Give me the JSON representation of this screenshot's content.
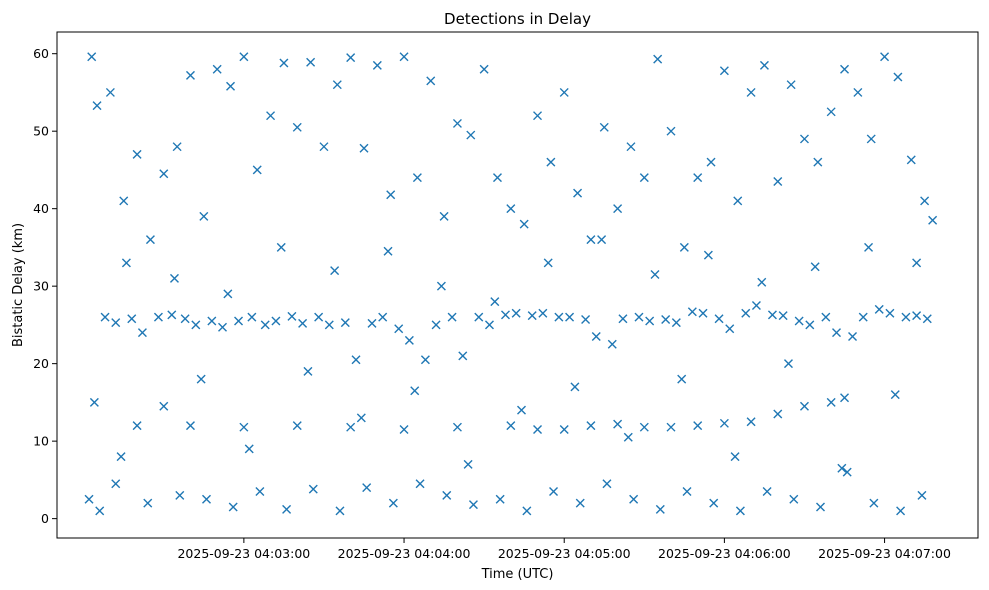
{
  "chart_data": {
    "type": "scatter",
    "title": "Detections in Delay",
    "xlabel": "Time (UTC)",
    "ylabel": "Bistatic Delay (km)",
    "x_tick_labels": [
      "2025-09-23 04:03:00",
      "2025-09-23 04:04:00",
      "2025-09-23 04:05:00",
      "2025-09-23 04:06:00",
      "2025-09-23 04:07:00"
    ],
    "y_ticks": [
      0,
      10,
      20,
      30,
      40,
      50,
      60
    ],
    "xlim": [
      "2025-09-23 04:01:50",
      "2025-09-23 04:07:35"
    ],
    "ylim": [
      -2.5,
      62.8
    ],
    "marker": "x",
    "color": "#1f77b4",
    "grid": false,
    "series": [
      {
        "x": [
          "2025-09-23 04:02:03",
          "2025-09-23 04:02:05",
          "2025-09-23 04:02:10",
          "2025-09-23 04:02:15",
          "2025-09-23 04:02:20",
          "2025-09-23 04:02:25",
          "2025-09-23 04:02:30",
          "2025-09-23 04:02:35",
          "2025-09-23 04:02:40",
          "2025-09-23 04:02:45",
          "2025-09-23 04:02:50",
          "2025-09-23 04:02:55",
          "2025-09-23 04:03:00",
          "2025-09-23 04:03:05",
          "2025-09-23 04:03:10",
          "2025-09-23 04:03:15",
          "2025-09-23 04:03:20",
          "2025-09-23 04:03:25",
          "2025-09-23 04:03:30",
          "2025-09-23 04:03:35",
          "2025-09-23 04:03:40",
          "2025-09-23 04:03:45",
          "2025-09-23 04:03:50",
          "2025-09-23 04:03:55",
          "2025-09-23 04:04:00",
          "2025-09-23 04:04:05",
          "2025-09-23 04:04:10",
          "2025-09-23 04:04:15",
          "2025-09-23 04:04:20",
          "2025-09-23 04:04:25",
          "2025-09-23 04:04:30",
          "2025-09-23 04:04:35",
          "2025-09-23 04:04:40",
          "2025-09-23 04:04:45",
          "2025-09-23 04:04:50",
          "2025-09-23 04:04:55",
          "2025-09-23 04:05:00",
          "2025-09-23 04:05:05",
          "2025-09-23 04:05:10",
          "2025-09-23 04:05:15",
          "2025-09-23 04:05:20",
          "2025-09-23 04:05:25",
          "2025-09-23 04:05:30",
          "2025-09-23 04:05:35",
          "2025-09-23 04:05:40",
          "2025-09-23 04:05:45",
          "2025-09-23 04:05:50",
          "2025-09-23 04:05:55",
          "2025-09-23 04:06:00",
          "2025-09-23 04:06:05",
          "2025-09-23 04:06:10",
          "2025-09-23 04:06:15",
          "2025-09-23 04:06:20",
          "2025-09-23 04:06:25",
          "2025-09-23 04:06:30",
          "2025-09-23 04:06:35",
          "2025-09-23 04:06:40",
          "2025-09-23 04:06:45",
          "2025-09-23 04:06:50",
          "2025-09-23 04:06:55",
          "2025-09-23 04:07:00",
          "2025-09-23 04:07:05",
          "2025-09-23 04:07:10",
          "2025-09-23 04:07:15",
          "2025-09-23 04:07:18",
          "2025-09-23 04:02:08",
          "2025-09-23 04:02:12",
          "2025-09-23 04:02:18",
          "2025-09-23 04:02:22",
          "2025-09-23 04:02:28",
          "2025-09-23 04:02:33",
          "2025-09-23 04:02:38",
          "2025-09-23 04:02:42",
          "2025-09-23 04:02:48",
          "2025-09-23 04:02:52",
          "2025-09-23 04:02:58",
          "2025-09-23 04:03:03",
          "2025-09-23 04:03:08",
          "2025-09-23 04:03:12",
          "2025-09-23 04:03:18",
          "2025-09-23 04:03:22",
          "2025-09-23 04:03:28",
          "2025-09-23 04:03:32",
          "2025-09-23 04:03:38",
          "2025-09-23 04:03:42",
          "2025-09-23 04:03:48",
          "2025-09-23 04:03:52",
          "2025-09-23 04:03:58",
          "2025-09-23 04:04:02",
          "2025-09-23 04:04:08",
          "2025-09-23 04:04:12",
          "2025-09-23 04:04:18",
          "2025-09-23 04:04:22",
          "2025-09-23 04:04:28",
          "2025-09-23 04:04:32",
          "2025-09-23 04:04:38",
          "2025-09-23 04:04:42",
          "2025-09-23 04:04:48",
          "2025-09-23 04:04:52",
          "2025-09-23 04:04:58",
          "2025-09-23 04:05:02",
          "2025-09-23 04:05:08",
          "2025-09-23 04:05:12",
          "2025-09-23 04:05:18",
          "2025-09-23 04:05:22",
          "2025-09-23 04:05:28",
          "2025-09-23 04:05:32",
          "2025-09-23 04:05:38",
          "2025-09-23 04:05:42",
          "2025-09-23 04:05:48",
          "2025-09-23 04:05:52",
          "2025-09-23 04:05:58",
          "2025-09-23 04:06:02",
          "2025-09-23 04:06:08",
          "2025-09-23 04:06:12",
          "2025-09-23 04:06:18",
          "2025-09-23 04:06:22",
          "2025-09-23 04:06:28",
          "2025-09-23 04:06:32",
          "2025-09-23 04:06:38",
          "2025-09-23 04:06:42",
          "2025-09-23 04:06:48",
          "2025-09-23 04:06:52",
          "2025-09-23 04:06:58",
          "2025-09-23 04:07:02",
          "2025-09-23 04:07:08",
          "2025-09-23 04:07:12",
          "2025-09-23 04:07:16"
        ],
        "y": [
          59.6,
          53.3,
          55.0,
          41.0,
          47.0,
          36.0,
          44.5,
          48.0,
          57.2,
          39.0,
          58.0,
          55.8,
          59.6,
          45.0,
          52.0,
          58.8,
          50.5,
          58.9,
          48.0,
          56.0,
          59.5,
          47.8,
          58.5,
          41.8,
          59.6,
          44.0,
          56.5,
          39.0,
          51.0,
          49.5,
          58.0,
          44.0,
          40.0,
          38.0,
          52.0,
          46.0,
          55.0,
          42.0,
          36.0,
          50.5,
          40.0,
          48.0,
          44.0,
          59.3,
          50.0,
          35.0,
          44.0,
          46.0,
          57.8,
          41.0,
          55.0,
          58.5,
          43.5,
          56.0,
          49.0,
          46.0,
          52.5,
          58.0,
          55.0,
          49.0,
          59.6,
          57.0,
          46.3,
          41.0,
          38.5,
          26.0,
          25.3,
          25.8,
          24.0,
          26.0,
          26.3,
          25.8,
          25.0,
          25.5,
          24.7,
          25.5,
          26.0,
          25.0,
          25.5,
          26.1,
          25.2,
          26.0,
          25.0,
          25.3,
          20.5,
          25.2,
          26.0,
          24.5,
          23.0,
          20.5,
          25.0,
          26.0,
          21.0,
          26.0,
          25.0,
          26.3,
          26.5,
          26.2,
          26.5,
          26.0,
          26.0,
          25.7,
          23.5,
          22.5,
          25.8,
          26.0,
          25.5,
          25.7,
          25.3,
          26.7,
          26.5,
          25.8,
          24.5,
          26.5,
          27.5,
          26.3,
          26.2,
          25.5,
          25.0,
          26.0,
          24.0,
          23.5,
          26.0,
          27.0,
          26.5,
          26.0,
          26.2,
          25.8
        ]
      },
      {
        "x": [
          "2025-09-23 04:02:20",
          "2025-09-23 04:02:40",
          "2025-09-23 04:03:00",
          "2025-09-23 04:03:20",
          "2025-09-23 04:03:40",
          "2025-09-23 04:04:00",
          "2025-09-23 04:04:20",
          "2025-09-23 04:04:40",
          "2025-09-23 04:04:50",
          "2025-09-23 04:05:00",
          "2025-09-23 04:05:10",
          "2025-09-23 04:05:20",
          "2025-09-23 04:05:30",
          "2025-09-23 04:05:40",
          "2025-09-23 04:05:50",
          "2025-09-23 04:06:00",
          "2025-09-23 04:06:10",
          "2025-09-23 04:06:20",
          "2025-09-23 04:06:30",
          "2025-09-23 04:06:40",
          "2025-09-23 04:06:45"
        ],
        "y": [
          12.0,
          12.0,
          11.8,
          12.0,
          11.8,
          11.5,
          11.8,
          12.0,
          11.5,
          11.5,
          12.0,
          12.2,
          11.8,
          11.8,
          12.0,
          12.3,
          12.5,
          13.5,
          14.5,
          15.0,
          15.6
        ]
      },
      {
        "x": [
          "2025-09-23 04:02:02",
          "2025-09-23 04:02:06",
          "2025-09-23 04:02:12",
          "2025-09-23 04:02:24",
          "2025-09-23 04:02:36",
          "2025-09-23 04:02:46",
          "2025-09-23 04:02:56",
          "2025-09-23 04:03:06",
          "2025-09-23 04:03:16",
          "2025-09-23 04:03:26",
          "2025-09-23 04:03:36",
          "2025-09-23 04:03:46",
          "2025-09-23 04:03:56",
          "2025-09-23 04:04:06",
          "2025-09-23 04:04:16",
          "2025-09-23 04:04:26",
          "2025-09-23 04:04:36",
          "2025-09-23 04:04:46",
          "2025-09-23 04:04:56",
          "2025-09-23 04:05:06",
          "2025-09-23 04:05:16",
          "2025-09-23 04:05:26",
          "2025-09-23 04:05:36",
          "2025-09-23 04:05:46",
          "2025-09-23 04:05:56",
          "2025-09-23 04:06:06",
          "2025-09-23 04:06:16",
          "2025-09-23 04:06:26",
          "2025-09-23 04:06:36",
          "2025-09-23 04:06:46",
          "2025-09-23 04:06:56",
          "2025-09-23 04:07:06",
          "2025-09-23 04:07:14",
          "2025-09-23 04:02:04",
          "2025-09-23 04:02:14",
          "2025-09-23 04:02:30",
          "2025-09-23 04:02:44",
          "2025-09-23 04:03:02",
          "2025-09-23 04:03:24",
          "2025-09-23 04:03:44",
          "2025-09-23 04:04:04",
          "2025-09-23 04:04:24",
          "2025-09-23 04:04:44",
          "2025-09-23 04:05:04",
          "2025-09-23 04:05:24",
          "2025-09-23 04:05:44",
          "2025-09-23 04:06:04",
          "2025-09-23 04:06:24",
          "2025-09-23 04:06:44",
          "2025-09-23 04:07:04",
          "2025-09-23 04:02:16",
          "2025-09-23 04:02:34",
          "2025-09-23 04:02:54",
          "2025-09-23 04:03:14",
          "2025-09-23 04:03:34",
          "2025-09-23 04:03:54",
          "2025-09-23 04:04:14",
          "2025-09-23 04:04:34",
          "2025-09-23 04:04:54",
          "2025-09-23 04:05:14",
          "2025-09-23 04:05:34",
          "2025-09-23 04:05:54",
          "2025-09-23 04:06:14",
          "2025-09-23 04:06:34",
          "2025-09-23 04:06:54",
          "2025-09-23 04:07:12"
        ],
        "y": [
          2.5,
          1.0,
          4.5,
          2.0,
          3.0,
          2.5,
          1.5,
          3.5,
          1.2,
          3.8,
          1.0,
          4.0,
          2.0,
          4.5,
          3.0,
          1.8,
          2.5,
          1.0,
          3.5,
          2.0,
          4.5,
          2.5,
          1.2,
          3.5,
          2.0,
          1.0,
          3.5,
          2.5,
          1.5,
          6.0,
          2.0,
          1.0,
          3.0,
          15.0,
          8.0,
          14.5,
          18.0,
          9.0,
          19.0,
          13.0,
          16.5,
          7.0,
          14.0,
          17.0,
          10.5,
          18.0,
          8.0,
          20.0,
          6.5,
          16.0,
          33.0,
          31.0,
          29.0,
          35.0,
          32.0,
          34.5,
          30.0,
          28.0,
          33.0,
          36.0,
          31.5,
          34.0,
          30.5,
          32.5,
          35.0,
          33.0
        ]
      }
    ]
  }
}
